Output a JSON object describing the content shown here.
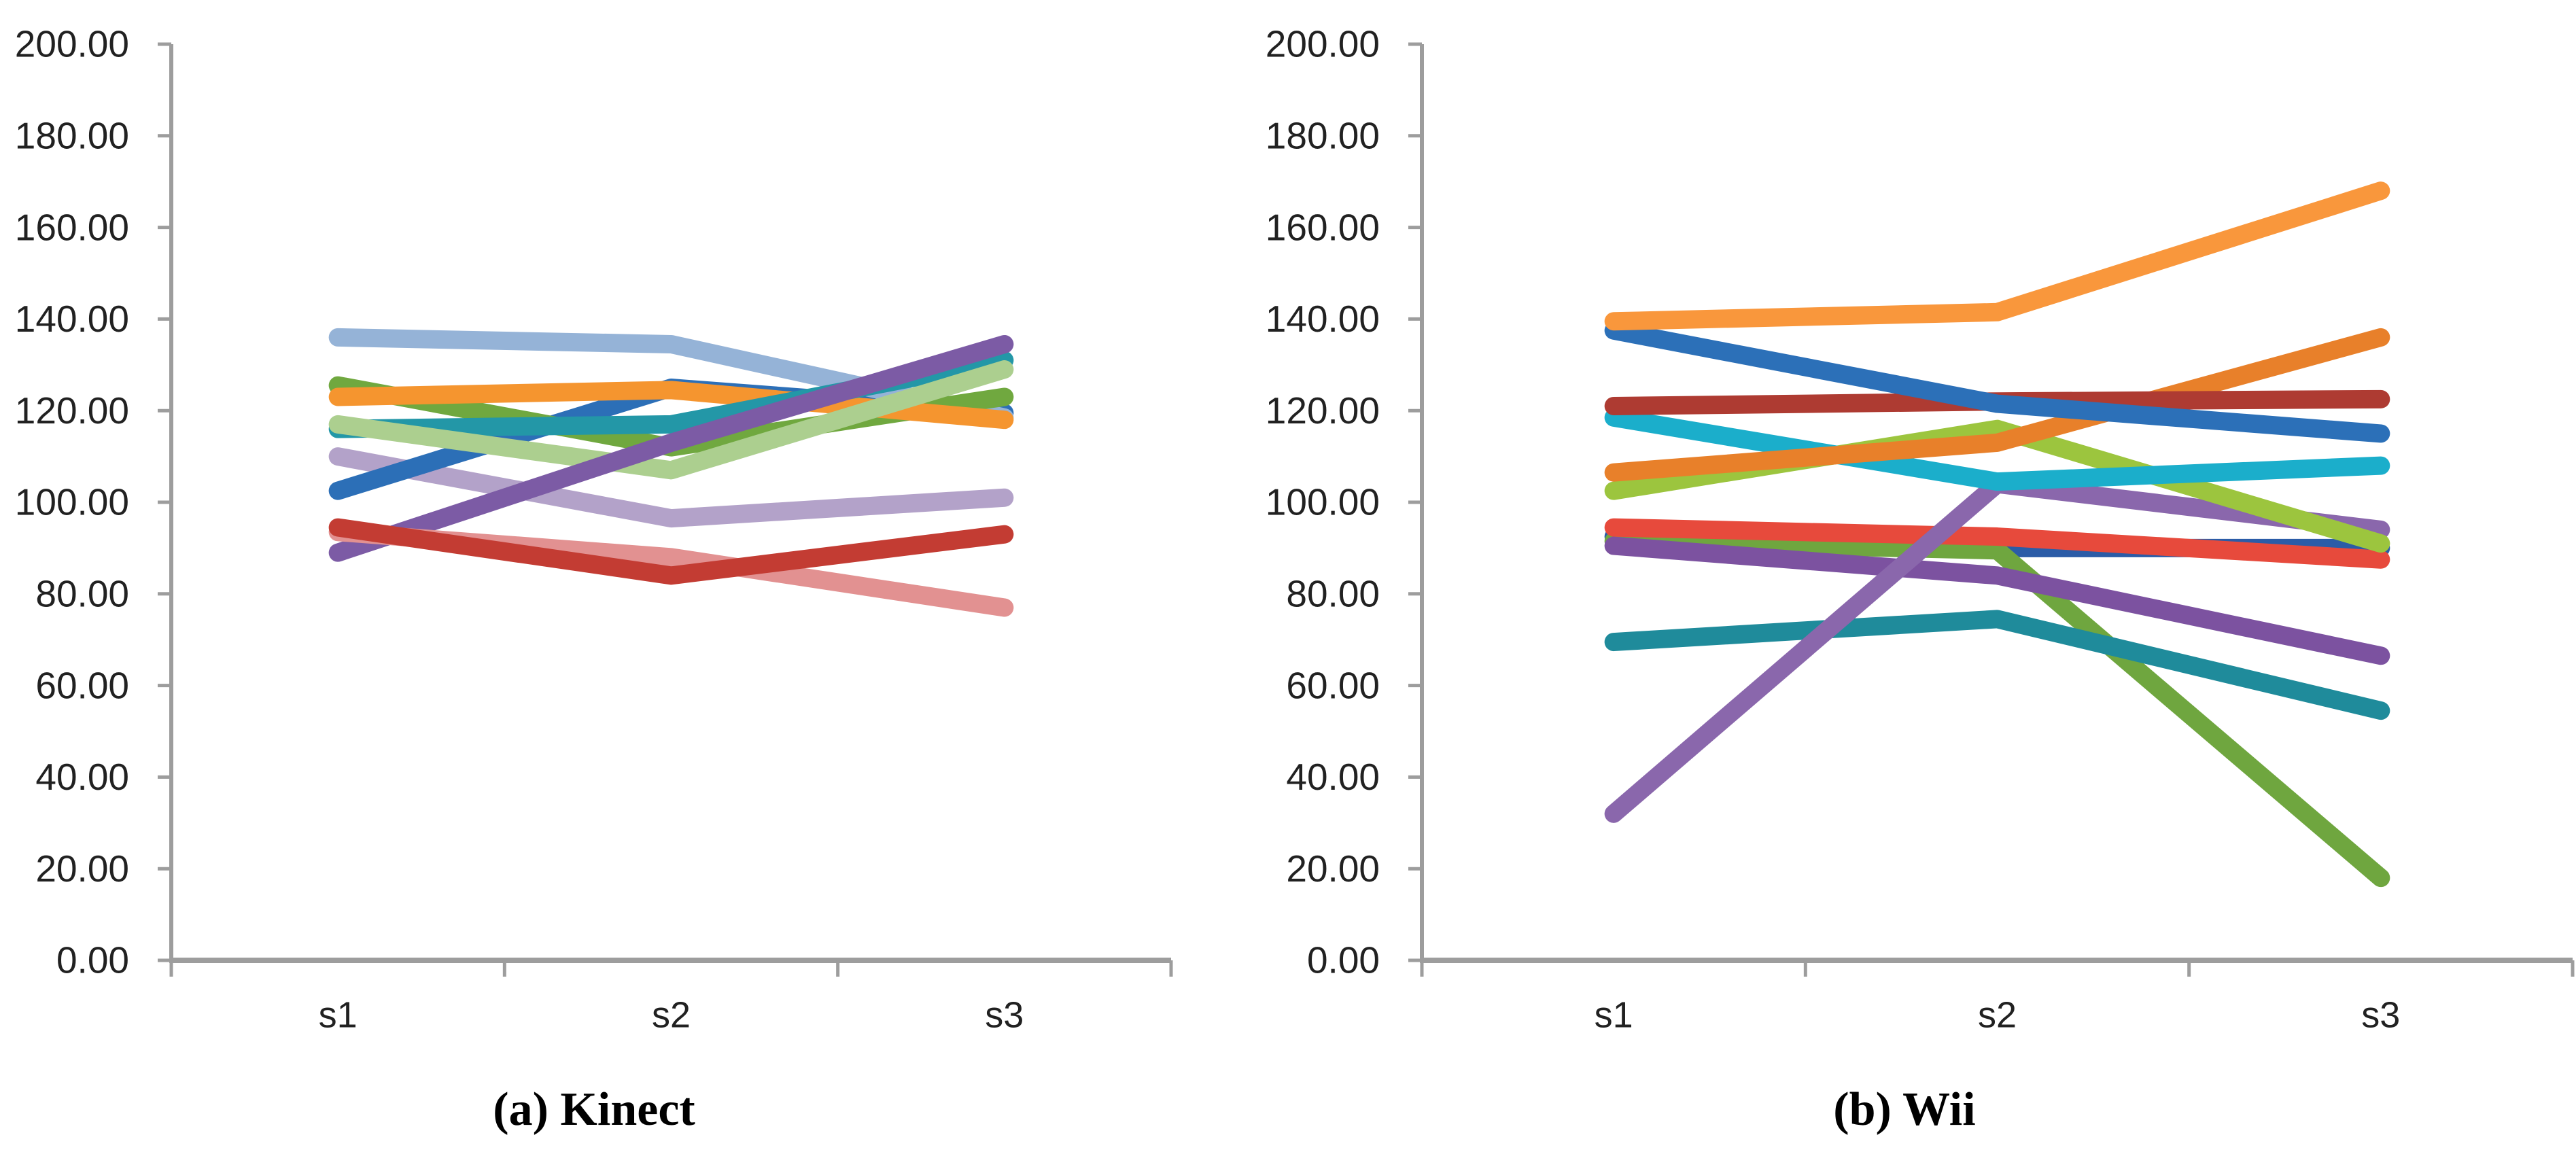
{
  "page": {
    "background": "#ffffff",
    "axis_color": "#9d9d9d",
    "tick_label_color": "#212121",
    "title_color": "#000000"
  },
  "style": {
    "line_width": 27,
    "axis_width": 6,
    "bottom_axis_width": 8,
    "tick_width": 5,
    "ytick_len": 20,
    "xtick_len": 24,
    "tick_label_size": 55,
    "cat_label_size": 54,
    "title_size": 70
  },
  "chart_data": [
    {
      "type": "line",
      "title": "(a) Kinect",
      "categories": [
        "s1",
        "s2",
        "s3"
      ],
      "xlabel": "",
      "ylabel": "",
      "ylim": [
        0,
        200
      ],
      "ytick_interval": 20,
      "ytick_labels": [
        "0.00",
        "20.00",
        "40.00",
        "60.00",
        "80.00",
        "100.00",
        "120.00",
        "140.00",
        "160.00",
        "180.00",
        "200.00"
      ],
      "grid": "off",
      "legend": "none",
      "layout": {
        "axis_x": 252,
        "right_x": 1723,
        "y_top": 65,
        "y_bottom": 1413,
        "label_right_x": 190,
        "cat_label_cy": 1493,
        "title_cx": 874,
        "title_cy": 1633
      },
      "series": [
        {
          "name": "light-purple",
          "color": "#B3A2C9",
          "values": [
            110,
            96.5,
            101
          ]
        },
        {
          "name": "blue",
          "color": "#2C6FB7",
          "values": [
            102.5,
            125,
            119.5
          ]
        },
        {
          "name": "light-blue",
          "color": "#95B3D7",
          "values": [
            136,
            134.5,
            118.5
          ]
        },
        {
          "name": "green",
          "color": "#70A83F",
          "values": [
            125.5,
            112,
            123
          ]
        },
        {
          "name": "orange",
          "color": "#F5952F",
          "values": [
            123,
            124.5,
            118
          ]
        },
        {
          "name": "teal",
          "color": "#2397A7",
          "values": [
            116,
            117,
            131
          ]
        },
        {
          "name": "light-green",
          "color": "#ACCF8F",
          "values": [
            117,
            107,
            129
          ]
        },
        {
          "name": "dark-purple",
          "color": "#7C5BA5",
          "values": [
            89,
            113,
            134.5
          ]
        },
        {
          "name": "pink",
          "color": "#E29191",
          "values": [
            93.5,
            88,
            77
          ]
        },
        {
          "name": "red",
          "color": "#C33C33",
          "values": [
            94.5,
            84,
            93
          ]
        }
      ]
    },
    {
      "type": "line",
      "title": "(b) Wii",
      "categories": [
        "s1",
        "s2",
        "s3"
      ],
      "xlabel": "",
      "ylabel": "",
      "ylim": [
        0,
        200
      ],
      "ytick_interval": 20,
      "ytick_labels": [
        "0.00",
        "20.00",
        "40.00",
        "60.00",
        "80.00",
        "100.00",
        "120.00",
        "140.00",
        "160.00",
        "180.00",
        "200.00"
      ],
      "grid": "off",
      "legend": "none",
      "layout": {
        "axis_x": 2092,
        "right_x": 3785,
        "y_top": 65,
        "y_bottom": 1413,
        "label_right_x": 2030,
        "cat_label_cy": 1493,
        "title_cx": 2802,
        "title_cy": 1633
      },
      "series": [
        {
          "name": "navy",
          "color": "#2B5CA7",
          "values": [
            92.5,
            90,
            90
          ]
        },
        {
          "name": "green",
          "color": "#6FA63F",
          "values": [
            91.5,
            89.5,
            18
          ]
        },
        {
          "name": "red",
          "color": "#E74A3C",
          "values": [
            94.5,
            92.5,
            87.5
          ]
        },
        {
          "name": "dark-purple",
          "color": "#7C52A0",
          "values": [
            90.5,
            84,
            66.5
          ]
        },
        {
          "name": "teal",
          "color": "#1F8B9B",
          "values": [
            69.5,
            74.5,
            54.5
          ]
        },
        {
          "name": "purple",
          "color": "#8A67AC",
          "values": [
            32,
            104,
            94
          ]
        },
        {
          "name": "yellow-green",
          "color": "#9CC53E",
          "values": [
            102.5,
            116,
            91
          ]
        },
        {
          "name": "cyan",
          "color": "#1BAECB",
          "values": [
            118.5,
            104.5,
            108
          ]
        },
        {
          "name": "dark-orange",
          "color": "#E8802A",
          "values": [
            106.5,
            113,
            136
          ]
        },
        {
          "name": "maroon",
          "color": "#AE3B32",
          "values": [
            121,
            122,
            122.5
          ]
        },
        {
          "name": "blue",
          "color": "#2C70B8",
          "values": [
            137.5,
            121.5,
            115
          ]
        },
        {
          "name": "light-orange",
          "color": "#F9973C",
          "values": [
            139.5,
            141.5,
            168
          ]
        }
      ]
    }
  ]
}
